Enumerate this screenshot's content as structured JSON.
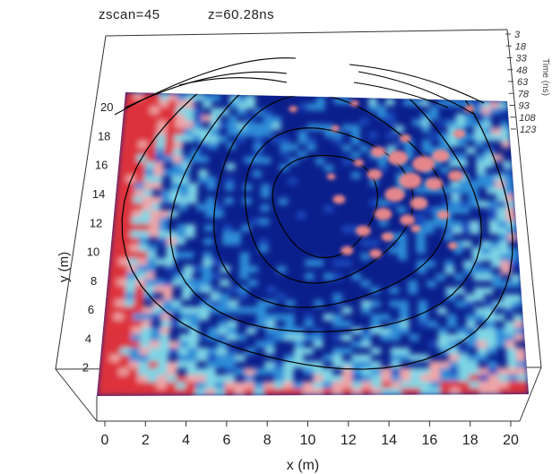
{
  "header": {
    "zscan_label": "zscan=45",
    "time_label": "z=60.28ns"
  },
  "chart_data": {
    "type": "heatmap",
    "title": "",
    "xlabel": "x (m)",
    "ylabel": "y (m)",
    "zlabel": "Time (ns)",
    "x_ticks": [
      0,
      2,
      4,
      6,
      8,
      10,
      12,
      14,
      16,
      18,
      20
    ],
    "y_ticks": [
      2,
      4,
      6,
      8,
      10,
      12,
      14,
      16,
      18,
      20
    ],
    "z_ticks": [
      "3",
      "18",
      "33",
      "48",
      "63",
      "78",
      "93",
      "108",
      "123"
    ],
    "xlim": [
      0,
      20
    ],
    "ylim": [
      0,
      21
    ],
    "colormap": [
      "#0b1f8c",
      "#1c4bc0",
      "#2f8fd8",
      "#7fd8e6",
      "#f3a7a7",
      "#e0303a"
    ],
    "contour_color": "#000000",
    "isosurface_color": "#f08a8a",
    "grid": false
  },
  "colors": {
    "background": "#ffffff",
    "text": "#222222",
    "axis": "#333333"
  }
}
